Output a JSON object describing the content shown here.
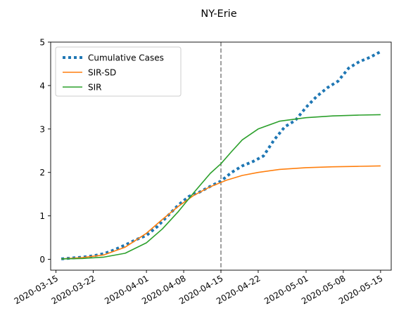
{
  "chart_data": {
    "type": "line",
    "title": "NY-Erie",
    "xlabel": "",
    "ylabel": "",
    "x_axis": {
      "type": "date",
      "range": [
        "2020-03-14",
        "2020-05-17"
      ],
      "tick_labels": [
        "2020-03-15",
        "2020-03-22",
        "2020-04-01",
        "2020-04-08",
        "2020-04-15",
        "2020-04-22",
        "2020-05-01",
        "2020-05-08",
        "2020-05-15"
      ]
    },
    "y_axis": {
      "range": [
        -0.25,
        5.0
      ],
      "ticks": [
        0,
        1,
        2,
        3,
        4,
        5
      ]
    },
    "grid": false,
    "legend": {
      "position": "top-left",
      "entries": [
        "Cumulative Cases",
        "SIR-SD",
        "SIR"
      ]
    },
    "vline": {
      "x": "2020-04-15",
      "color": "#808080",
      "style": "dashed"
    },
    "series": [
      {
        "name": "Cumulative Cases",
        "color": "#1f77b4",
        "style": "dotted",
        "x": [
          "2020-03-16",
          "2020-03-18",
          "2020-03-20",
          "2020-03-22",
          "2020-03-24",
          "2020-03-26",
          "2020-03-28",
          "2020-03-30",
          "2020-04-01",
          "2020-04-03",
          "2020-04-05",
          "2020-04-07",
          "2020-04-09",
          "2020-04-11",
          "2020-04-13",
          "2020-04-15",
          "2020-04-17",
          "2020-04-19",
          "2020-04-21",
          "2020-04-23",
          "2020-04-25",
          "2020-04-27",
          "2020-04-29",
          "2020-05-01",
          "2020-05-03",
          "2020-05-05",
          "2020-05-07",
          "2020-05-09",
          "2020-05-11",
          "2020-05-13",
          "2020-05-15"
        ],
        "values": [
          0.01,
          0.03,
          0.05,
          0.08,
          0.13,
          0.22,
          0.33,
          0.45,
          0.55,
          0.75,
          1.0,
          1.25,
          1.45,
          1.55,
          1.68,
          1.8,
          2.0,
          2.15,
          2.25,
          2.38,
          2.75,
          3.05,
          3.2,
          3.5,
          3.75,
          3.95,
          4.1,
          4.4,
          4.55,
          4.65,
          4.78
        ]
      },
      {
        "name": "SIR-SD",
        "color": "#ff7f0e",
        "style": "solid",
        "x": [
          "2020-03-16",
          "2020-03-20",
          "2020-03-24",
          "2020-03-28",
          "2020-04-01",
          "2020-04-04",
          "2020-04-07",
          "2020-04-10",
          "2020-04-13",
          "2020-04-16",
          "2020-04-19",
          "2020-04-22",
          "2020-04-26",
          "2020-05-01",
          "2020-05-06",
          "2020-05-11",
          "2020-05-15"
        ],
        "values": [
          0.01,
          0.04,
          0.1,
          0.28,
          0.6,
          0.92,
          1.22,
          1.48,
          1.67,
          1.82,
          1.93,
          2.0,
          2.07,
          2.11,
          2.13,
          2.14,
          2.15
        ]
      },
      {
        "name": "SIR",
        "color": "#2ca02c",
        "style": "solid",
        "x": [
          "2020-03-16",
          "2020-03-20",
          "2020-03-24",
          "2020-03-28",
          "2020-04-01",
          "2020-04-04",
          "2020-04-07",
          "2020-04-10",
          "2020-04-13",
          "2020-04-15",
          "2020-04-17",
          "2020-04-19",
          "2020-04-22",
          "2020-04-26",
          "2020-05-01",
          "2020-05-06",
          "2020-05-11",
          "2020-05-15"
        ],
        "values": [
          0.01,
          0.02,
          0.05,
          0.14,
          0.38,
          0.7,
          1.1,
          1.55,
          1.98,
          2.2,
          2.48,
          2.75,
          3.0,
          3.18,
          3.26,
          3.3,
          3.32,
          3.33
        ]
      }
    ]
  }
}
